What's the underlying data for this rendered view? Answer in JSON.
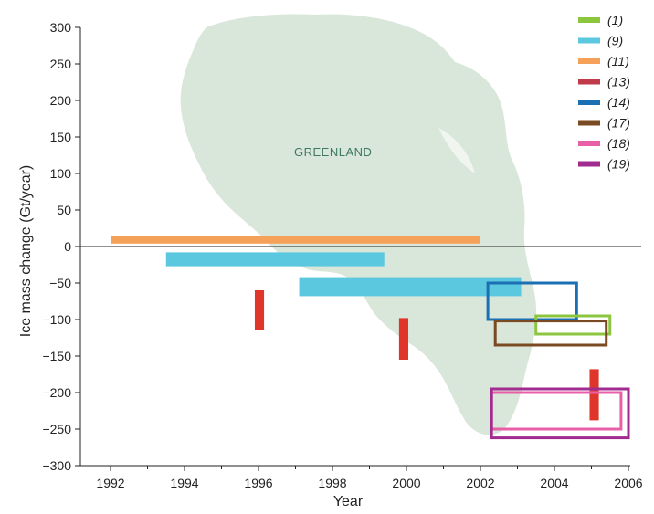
{
  "chart_data": {
    "type": "bar",
    "xlabel": "Year",
    "ylabel": "Ice mass change (Gt/year)",
    "xlim": [
      1991.2,
      2006
    ],
    "ylim": [
      -300,
      300
    ],
    "x_ticks": [
      "1992",
      "1994",
      "1996",
      "1998",
      "2000",
      "2002",
      "2004",
      "2006"
    ],
    "y_ticks": [
      "300",
      "250",
      "200",
      "150",
      "100",
      "50",
      "0",
      "−50",
      "−100",
      "−150",
      "−200",
      "−250",
      "−300"
    ],
    "map_label": "GREENLAND",
    "legend_position": "top-right",
    "series": [
      {
        "name": "(1)",
        "color": "#8cc63f",
        "style": "outline",
        "items": [
          {
            "x_start": 2003.5,
            "x_end": 2005.5,
            "y_low": -120,
            "y_high": -95
          }
        ]
      },
      {
        "name": "(9)",
        "color": "#5bc8e0",
        "style": "filled",
        "items": [
          {
            "x_start": 1993.5,
            "x_end": 1999.4,
            "y_low": -27,
            "y_high": -8
          },
          {
            "x_start": 1997.1,
            "x_end": 2003.1,
            "y_low": -68,
            "y_high": -42
          }
        ]
      },
      {
        "name": "(11)",
        "color": "#f5a15a",
        "style": "filled",
        "items": [
          {
            "x_start": 1992,
            "x_end": 2002,
            "y_low": 4,
            "y_high": 14
          }
        ]
      },
      {
        "name": "(13)",
        "color": "#c03a4a",
        "style": "filled",
        "items": []
      },
      {
        "name": "(14)",
        "color": "#1b6fb3",
        "style": "outline",
        "items": [
          {
            "x_start": 2002.2,
            "x_end": 2004.6,
            "y_low": -100,
            "y_high": -50
          }
        ]
      },
      {
        "name": "(17)",
        "color": "#7a4a22",
        "style": "outline",
        "items": [
          {
            "x_start": 2002.4,
            "x_end": 2005.4,
            "y_low": -135,
            "y_high": -102
          }
        ]
      },
      {
        "name": "(18)",
        "color": "#e85fa8",
        "style": "outline",
        "items": [
          {
            "x_start": 2002.3,
            "x_end": 2005.8,
            "y_low": -250,
            "y_high": -200
          }
        ]
      },
      {
        "name": "(19)",
        "color": "#a12b8f",
        "style": "outline",
        "items": [
          {
            "x_start": 2002.3,
            "x_end": 2006,
            "y_low": -262,
            "y_high": -195
          }
        ]
      },
      {
        "name": "",
        "color": "#e0352b",
        "style": "filled",
        "items": [
          {
            "x_start": 1995.9,
            "x_end": 1996.15,
            "y_low": -115,
            "y_high": -60
          },
          {
            "x_start": 1999.8,
            "x_end": 2000.05,
            "y_low": -155,
            "y_high": -98
          },
          {
            "x_start": 2004.95,
            "x_end": 2005.2,
            "y_low": -238,
            "y_high": -168
          }
        ]
      }
    ]
  }
}
